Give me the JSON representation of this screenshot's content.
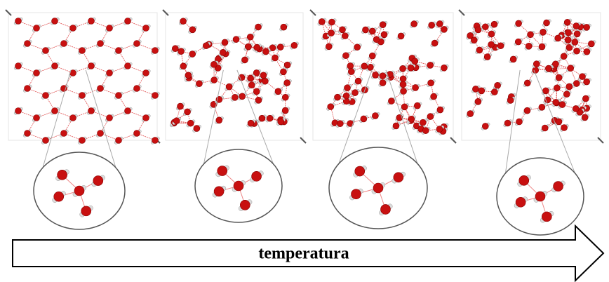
{
  "arrow": {
    "label": "temperatura"
  }
}
